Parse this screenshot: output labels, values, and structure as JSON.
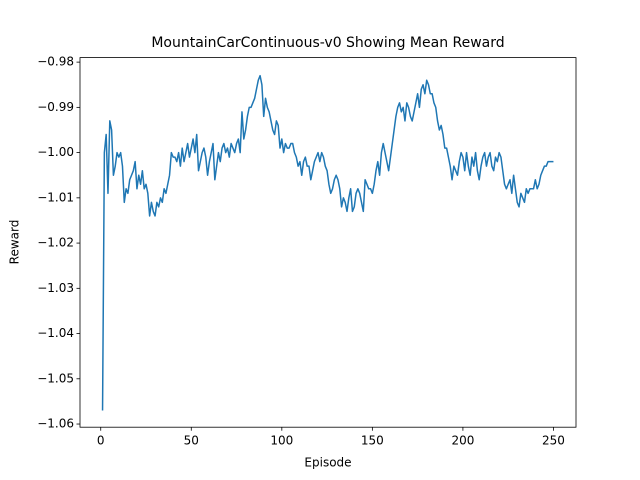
{
  "chart_data": {
    "type": "line",
    "title": "MountainCarContinuous-v0 Showing Mean Reward",
    "x_label": "Episode",
    "y_label": "Reward",
    "x": [
      1,
      2,
      3,
      4,
      5,
      6,
      7,
      8,
      9,
      10,
      11,
      12,
      13,
      14,
      15,
      16,
      17,
      18,
      19,
      20,
      21,
      22,
      23,
      24,
      25,
      26,
      27,
      28,
      29,
      30,
      31,
      32,
      33,
      34,
      35,
      36,
      37,
      38,
      39,
      40,
      41,
      42,
      43,
      44,
      45,
      46,
      47,
      48,
      49,
      50,
      51,
      52,
      53,
      54,
      55,
      56,
      57,
      58,
      59,
      60,
      61,
      62,
      63,
      64,
      65,
      66,
      67,
      68,
      69,
      70,
      71,
      72,
      73,
      74,
      75,
      76,
      77,
      78,
      79,
      80,
      81,
      82,
      83,
      84,
      85,
      86,
      87,
      88,
      89,
      90,
      91,
      92,
      93,
      94,
      95,
      96,
      97,
      98,
      99,
      100,
      101,
      102,
      103,
      104,
      105,
      106,
      107,
      108,
      109,
      110,
      111,
      112,
      113,
      114,
      115,
      116,
      117,
      118,
      119,
      120,
      121,
      122,
      123,
      124,
      125,
      126,
      127,
      128,
      129,
      130,
      131,
      132,
      133,
      134,
      135,
      136,
      137,
      138,
      139,
      140,
      141,
      142,
      143,
      144,
      145,
      146,
      147,
      148,
      149,
      150,
      151,
      152,
      153,
      154,
      155,
      156,
      157,
      158,
      159,
      160,
      161,
      162,
      163,
      164,
      165,
      166,
      167,
      168,
      169,
      170,
      171,
      172,
      173,
      174,
      175,
      176,
      177,
      178,
      179,
      180,
      181,
      182,
      183,
      184,
      185,
      186,
      187,
      188,
      189,
      190,
      191,
      192,
      193,
      194,
      195,
      196,
      197,
      198,
      199,
      200,
      201,
      202,
      203,
      204,
      205,
      206,
      207,
      208,
      209,
      210,
      211,
      212,
      213,
      214,
      215,
      216,
      217,
      218,
      219,
      220,
      221,
      222,
      223,
      224,
      225,
      226,
      227,
      228,
      229,
      230,
      231,
      232,
      233,
      234,
      235,
      236,
      237,
      238,
      239,
      240,
      241,
      242,
      243,
      244,
      245,
      246,
      247,
      248,
      249,
      250
    ],
    "series": [
      {
        "name": "Reward",
        "color": "#1f77b4",
        "values": [
          -1.057,
          -1.0,
          -0.996,
          -1.009,
          -0.993,
          -0.995,
          -1.005,
          -1.003,
          -1.0,
          -1.001,
          -1.0,
          -1.003,
          -1.011,
          -1.008,
          -1.009,
          -1.006,
          -1.005,
          -1.004,
          -1.002,
          -1.008,
          -1.005,
          -1.007,
          -1.004,
          -1.008,
          -1.007,
          -1.009,
          -1.014,
          -1.011,
          -1.013,
          -1.014,
          -1.011,
          -1.012,
          -1.01,
          -1.011,
          -1.008,
          -1.009,
          -1.007,
          -1.005,
          -1.0,
          -1.001,
          -1.001,
          -1.002,
          -1.0,
          -1.003,
          -0.999,
          -1.002,
          -1.0,
          -0.998,
          -1.001,
          -0.999,
          -0.997,
          -1.0,
          -0.996,
          -1.004,
          -1.002,
          -1.0,
          -0.999,
          -1.001,
          -1.005,
          -1.002,
          -1.0,
          -0.998,
          -1.006,
          -1.003,
          -1.0,
          -1.002,
          -0.999,
          -0.998,
          -1.0,
          -0.999,
          -1.001,
          -0.998,
          -0.999,
          -1.0,
          -0.998,
          -0.997,
          -1.0,
          -0.991,
          -0.997,
          -0.995,
          -0.992,
          -0.99,
          -0.99,
          -0.989,
          -0.988,
          -0.986,
          -0.984,
          -0.983,
          -0.985,
          -0.992,
          -0.988,
          -0.99,
          -0.991,
          -0.993,
          -0.995,
          -0.996,
          -0.993,
          -0.994,
          -0.999,
          -0.997,
          -1.0,
          -0.998,
          -0.999,
          -0.999,
          -0.998,
          -0.998,
          -1.0,
          -1.001,
          -1.003,
          -1.002,
          -1.005,
          -1.002,
          -1.001,
          -1.003,
          -1.003,
          -1.006,
          -1.004,
          -1.002,
          -1.001,
          -1.0,
          -1.002,
          -1.0,
          -1.001,
          -1.003,
          -1.004,
          -1.007,
          -1.009,
          -1.008,
          -1.006,
          -1.005,
          -1.006,
          -1.008,
          -1.012,
          -1.01,
          -1.011,
          -1.013,
          -1.01,
          -1.008,
          -1.013,
          -1.012,
          -1.009,
          -1.008,
          -1.009,
          -1.011,
          -1.013,
          -1.006,
          -1.007,
          -1.008,
          -1.008,
          -1.009,
          -1.007,
          -1.004,
          -1.002,
          -1.005,
          -1.0,
          -0.998,
          -1.0,
          -1.002,
          -1.004,
          -1.001,
          -0.998,
          -0.995,
          -0.992,
          -0.99,
          -0.989,
          -0.991,
          -0.99,
          -0.993,
          -0.989,
          -0.99,
          -0.992,
          -0.993,
          -0.991,
          -0.989,
          -0.987,
          -0.99,
          -0.986,
          -0.985,
          -0.987,
          -0.984,
          -0.985,
          -0.987,
          -0.987,
          -0.989,
          -0.99,
          -0.993,
          -0.995,
          -0.994,
          -0.996,
          -0.999,
          -0.999,
          -1.001,
          -1.003,
          -1.006,
          -1.003,
          -1.004,
          -1.005,
          -1.002,
          -1.0,
          -1.001,
          -1.004,
          -1.0,
          -1.003,
          -1.005,
          -1.001,
          -1.003,
          -1.0,
          -1.004,
          -1.006,
          -1.003,
          -1.001,
          -1.0,
          -1.003,
          -1.001,
          -1.0,
          -1.003,
          -1.004,
          -1.001,
          -1.002,
          -1.0,
          -1.001,
          -1.004,
          -1.007,
          -1.008,
          -1.007,
          -1.006,
          -1.009,
          -1.005,
          -1.008,
          -1.011,
          -1.012,
          -1.009,
          -1.01,
          -1.011,
          -1.008,
          -1.009,
          -1.008,
          -1.008,
          -1.008,
          -1.006,
          -1.008,
          -1.007,
          -1.005,
          -1.004,
          -1.003,
          -1.003,
          -1.002,
          -1.002,
          -1.002,
          -1.002
        ]
      }
    ],
    "xlim": [
      -11.45,
      262.45
    ],
    "xticks": [
      0,
      50,
      100,
      150,
      200,
      250
    ],
    "ylim": [
      -1.0607,
      -0.979
    ],
    "yticks": [
      {
        "value": -1.06,
        "label": "−1.06"
      },
      {
        "value": -1.05,
        "label": "−1.05"
      },
      {
        "value": -1.04,
        "label": "−1.04"
      },
      {
        "value": -1.03,
        "label": "−1.03"
      },
      {
        "value": -1.02,
        "label": "−1.02"
      },
      {
        "value": -1.01,
        "label": "−1.01"
      },
      {
        "value": -1.0,
        "label": "−1.00"
      },
      {
        "value": -0.99,
        "label": "−0.99"
      },
      {
        "value": -0.98,
        "label": "−0.98"
      }
    ]
  }
}
